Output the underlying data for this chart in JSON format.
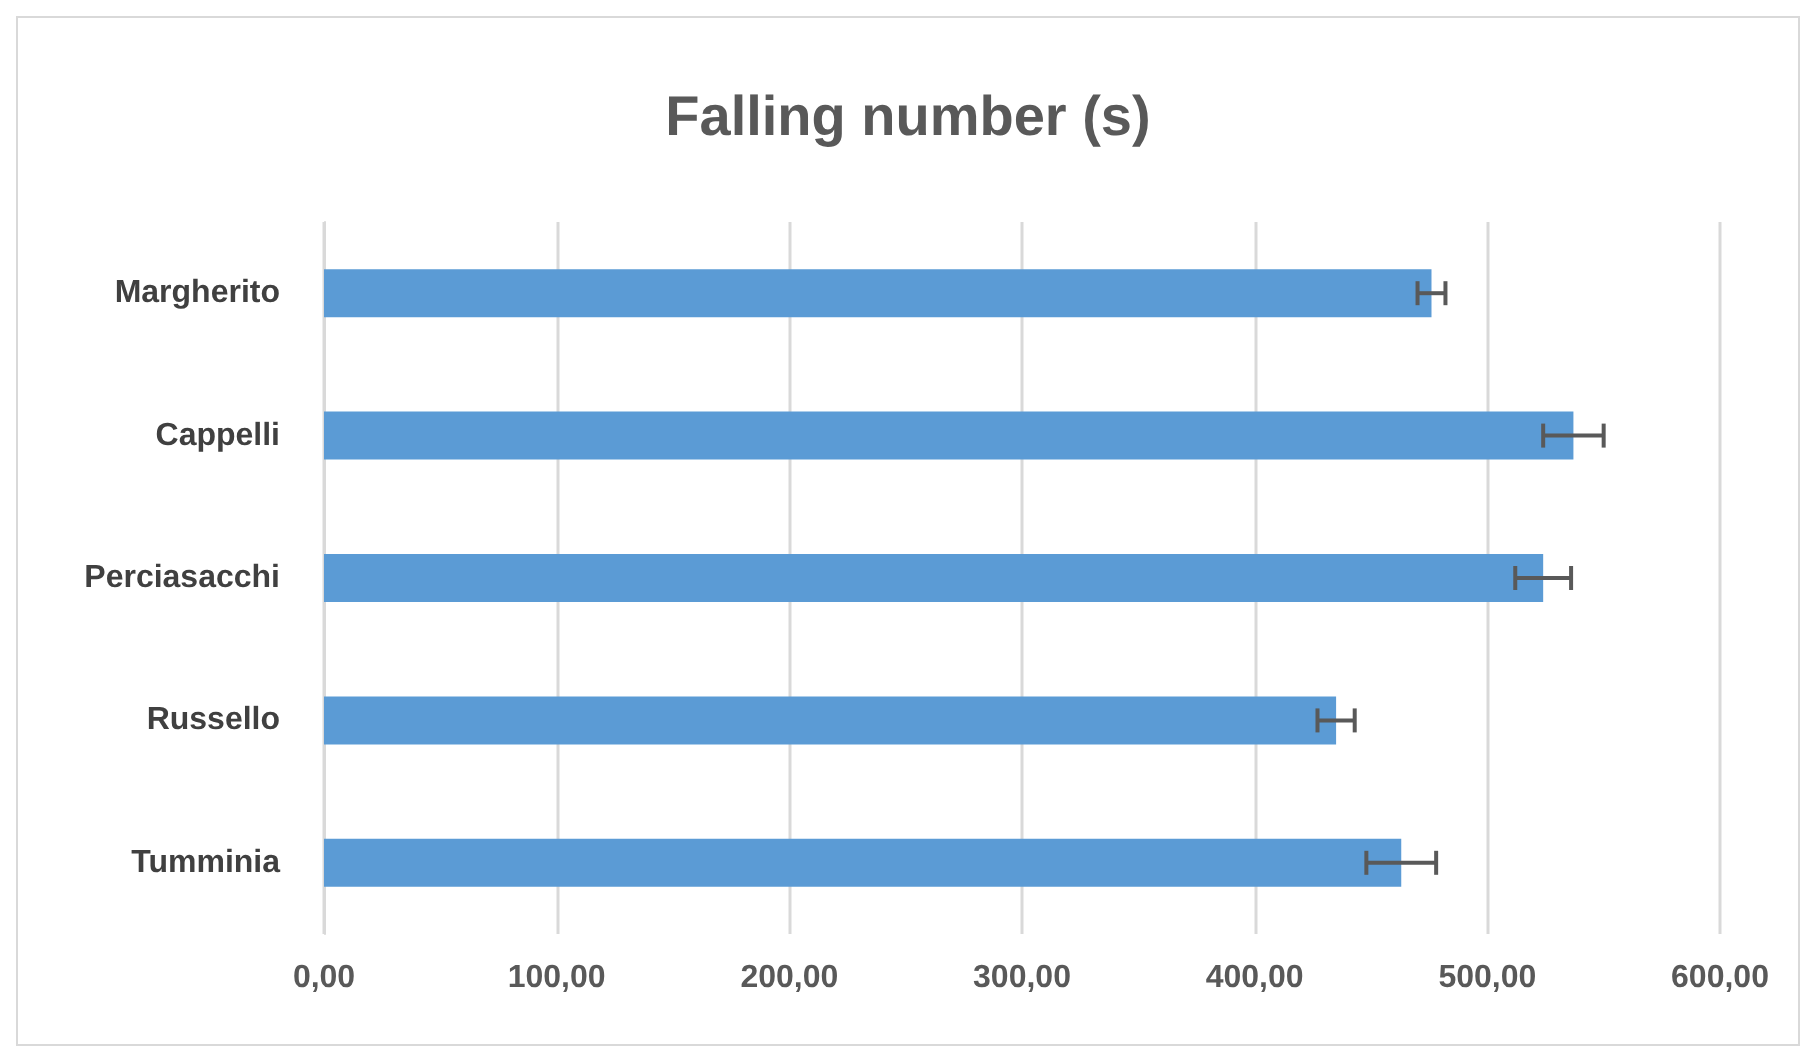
{
  "chart_data": {
    "type": "bar",
    "orientation": "horizontal",
    "title": "Falling number (s)",
    "categories": [
      "Margherito",
      "Cappelli",
      "Perciasacchi",
      "Russello",
      "Tumminia"
    ],
    "values": [
      476,
      537,
      524,
      435,
      463
    ],
    "errors": [
      6,
      13,
      12,
      8,
      15
    ],
    "color": "#5b9bd5",
    "xlim": [
      0,
      600
    ],
    "xticks": [
      {
        "value": 0,
        "label": "0,00"
      },
      {
        "value": 100,
        "label": "100,00"
      },
      {
        "value": 200,
        "label": "200,00"
      },
      {
        "value": 300,
        "label": "300,00"
      },
      {
        "value": 400,
        "label": "400,00"
      },
      {
        "value": 500,
        "label": "500,00"
      },
      {
        "value": 600,
        "label": "600,00"
      }
    ],
    "grid": "x"
  }
}
